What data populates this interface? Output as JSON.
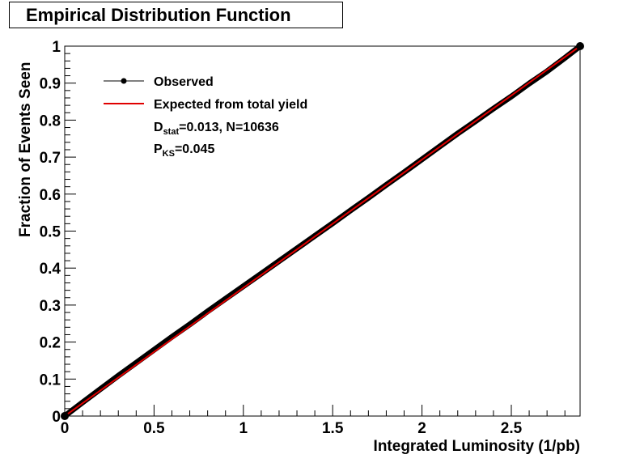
{
  "chart_data": {
    "type": "line",
    "title": "Empirical Distribution Function",
    "xlabel": "Integrated Luminosity (1/pb)",
    "ylabel": "Fraction of Events Seen",
    "xlim": [
      0,
      2.885
    ],
    "ylim": [
      0,
      1
    ],
    "x_ticks": [
      0,
      0.5,
      1,
      1.5,
      2,
      2.5
    ],
    "x_tick_labels": [
      "0",
      "0.5",
      "1",
      "1.5",
      "2",
      "2.5"
    ],
    "y_ticks": [
      0,
      0.1,
      0.2,
      0.3,
      0.4,
      0.5,
      0.6,
      0.7,
      0.8,
      0.9,
      1
    ],
    "y_tick_labels": [
      "0",
      "0.1",
      "0.2",
      "0.3",
      "0.4",
      "0.5",
      "0.6",
      "0.7",
      "0.8",
      "0.9",
      "1"
    ],
    "grid": false,
    "legend_position": "top-left",
    "series": [
      {
        "name": "Observed",
        "color": "#000000",
        "marker": "circle",
        "x": [
          0,
          0.1,
          0.2,
          0.3,
          0.4,
          0.5,
          0.6,
          0.7,
          0.8,
          0.9,
          1.0,
          1.1,
          1.2,
          1.3,
          1.4,
          1.5,
          1.6,
          1.7,
          1.8,
          1.9,
          2.0,
          2.1,
          2.2,
          2.3,
          2.4,
          2.5,
          2.6,
          2.7,
          2.8,
          2.885
        ],
        "y": [
          0,
          0.037,
          0.073,
          0.109,
          0.144,
          0.179,
          0.214,
          0.248,
          0.283,
          0.317,
          0.351,
          0.385,
          0.419,
          0.453,
          0.487,
          0.521,
          0.556,
          0.59,
          0.625,
          0.659,
          0.694,
          0.729,
          0.764,
          0.797,
          0.831,
          0.864,
          0.899,
          0.932,
          0.968,
          1.0
        ]
      },
      {
        "name": "Expected from total yield",
        "color": "#e00000",
        "x": [
          0,
          2.885
        ],
        "y": [
          0,
          1
        ]
      }
    ],
    "annotations": {
      "dstat_main": "D",
      "dstat_sub": "stat",
      "dstat_rest": "=0.013, N=10636",
      "pks_main": "P",
      "pks_sub": "KS",
      "pks_rest": "=0.045"
    }
  }
}
